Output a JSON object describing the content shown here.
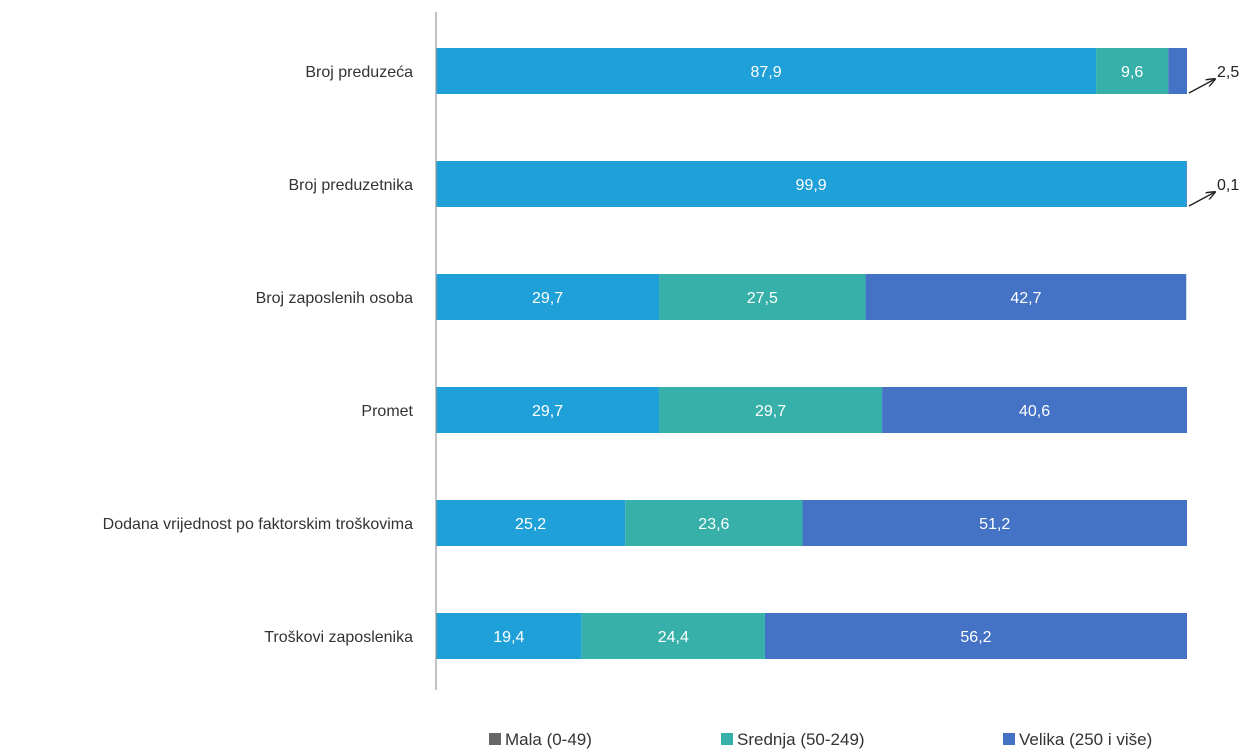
{
  "chart_data": {
    "type": "bar",
    "orientation": "horizontal",
    "stacked": true,
    "title": "",
    "xlabel": "",
    "ylabel": "",
    "xlim": [
      0,
      100
    ],
    "categories": [
      "Broj preduzeća",
      "Broj preduzetnika",
      "Broj zaposlenih osoba",
      "Promet",
      "Dodana vrijednost po faktorskim troškovima",
      "Troškovi zaposlenika"
    ],
    "series": [
      {
        "name": "Mala (0-49)",
        "color": "#1fa0d8",
        "values": [
          87.9,
          99.9,
          29.7,
          29.7,
          25.2,
          19.4
        ],
        "labels": [
          "87,9",
          "99,9",
          "29,7",
          "29,7",
          "25,2",
          "19,4"
        ]
      },
      {
        "name": "Srednja (50-249)",
        "color": "#36b0a8",
        "values": [
          9.6,
          0,
          27.5,
          29.7,
          23.6,
          24.4
        ],
        "labels": [
          "9,6",
          "",
          "27,5",
          "29,7",
          "23,6",
          "24,4"
        ]
      },
      {
        "name": "Velika (250 i više)",
        "color": "#4472c4",
        "values": [
          2.5,
          0.1,
          42.7,
          40.6,
          51.2,
          56.2
        ],
        "labels": [
          "2,5",
          "0,1",
          "42,7",
          "40,6",
          "51,2",
          "56,2"
        ]
      }
    ],
    "callouts": [
      {
        "category": "Broj preduzeća",
        "series": "Velika (250 i više)",
        "text": "2,5"
      },
      {
        "category": "Broj preduzetnika",
        "series": "Velika (250 i više)",
        "text": "0,1"
      }
    ],
    "legend": {
      "position": "bottom",
      "items": [
        {
          "label": "Mala (0-49)",
          "color": "#666666"
        },
        {
          "label": "Srednja (50-249)",
          "color": "#36b0a8"
        },
        {
          "label": "Velika (250 i više)",
          "color": "#4472c4"
        }
      ]
    },
    "grid": false,
    "axis_line_color": "#999999"
  }
}
